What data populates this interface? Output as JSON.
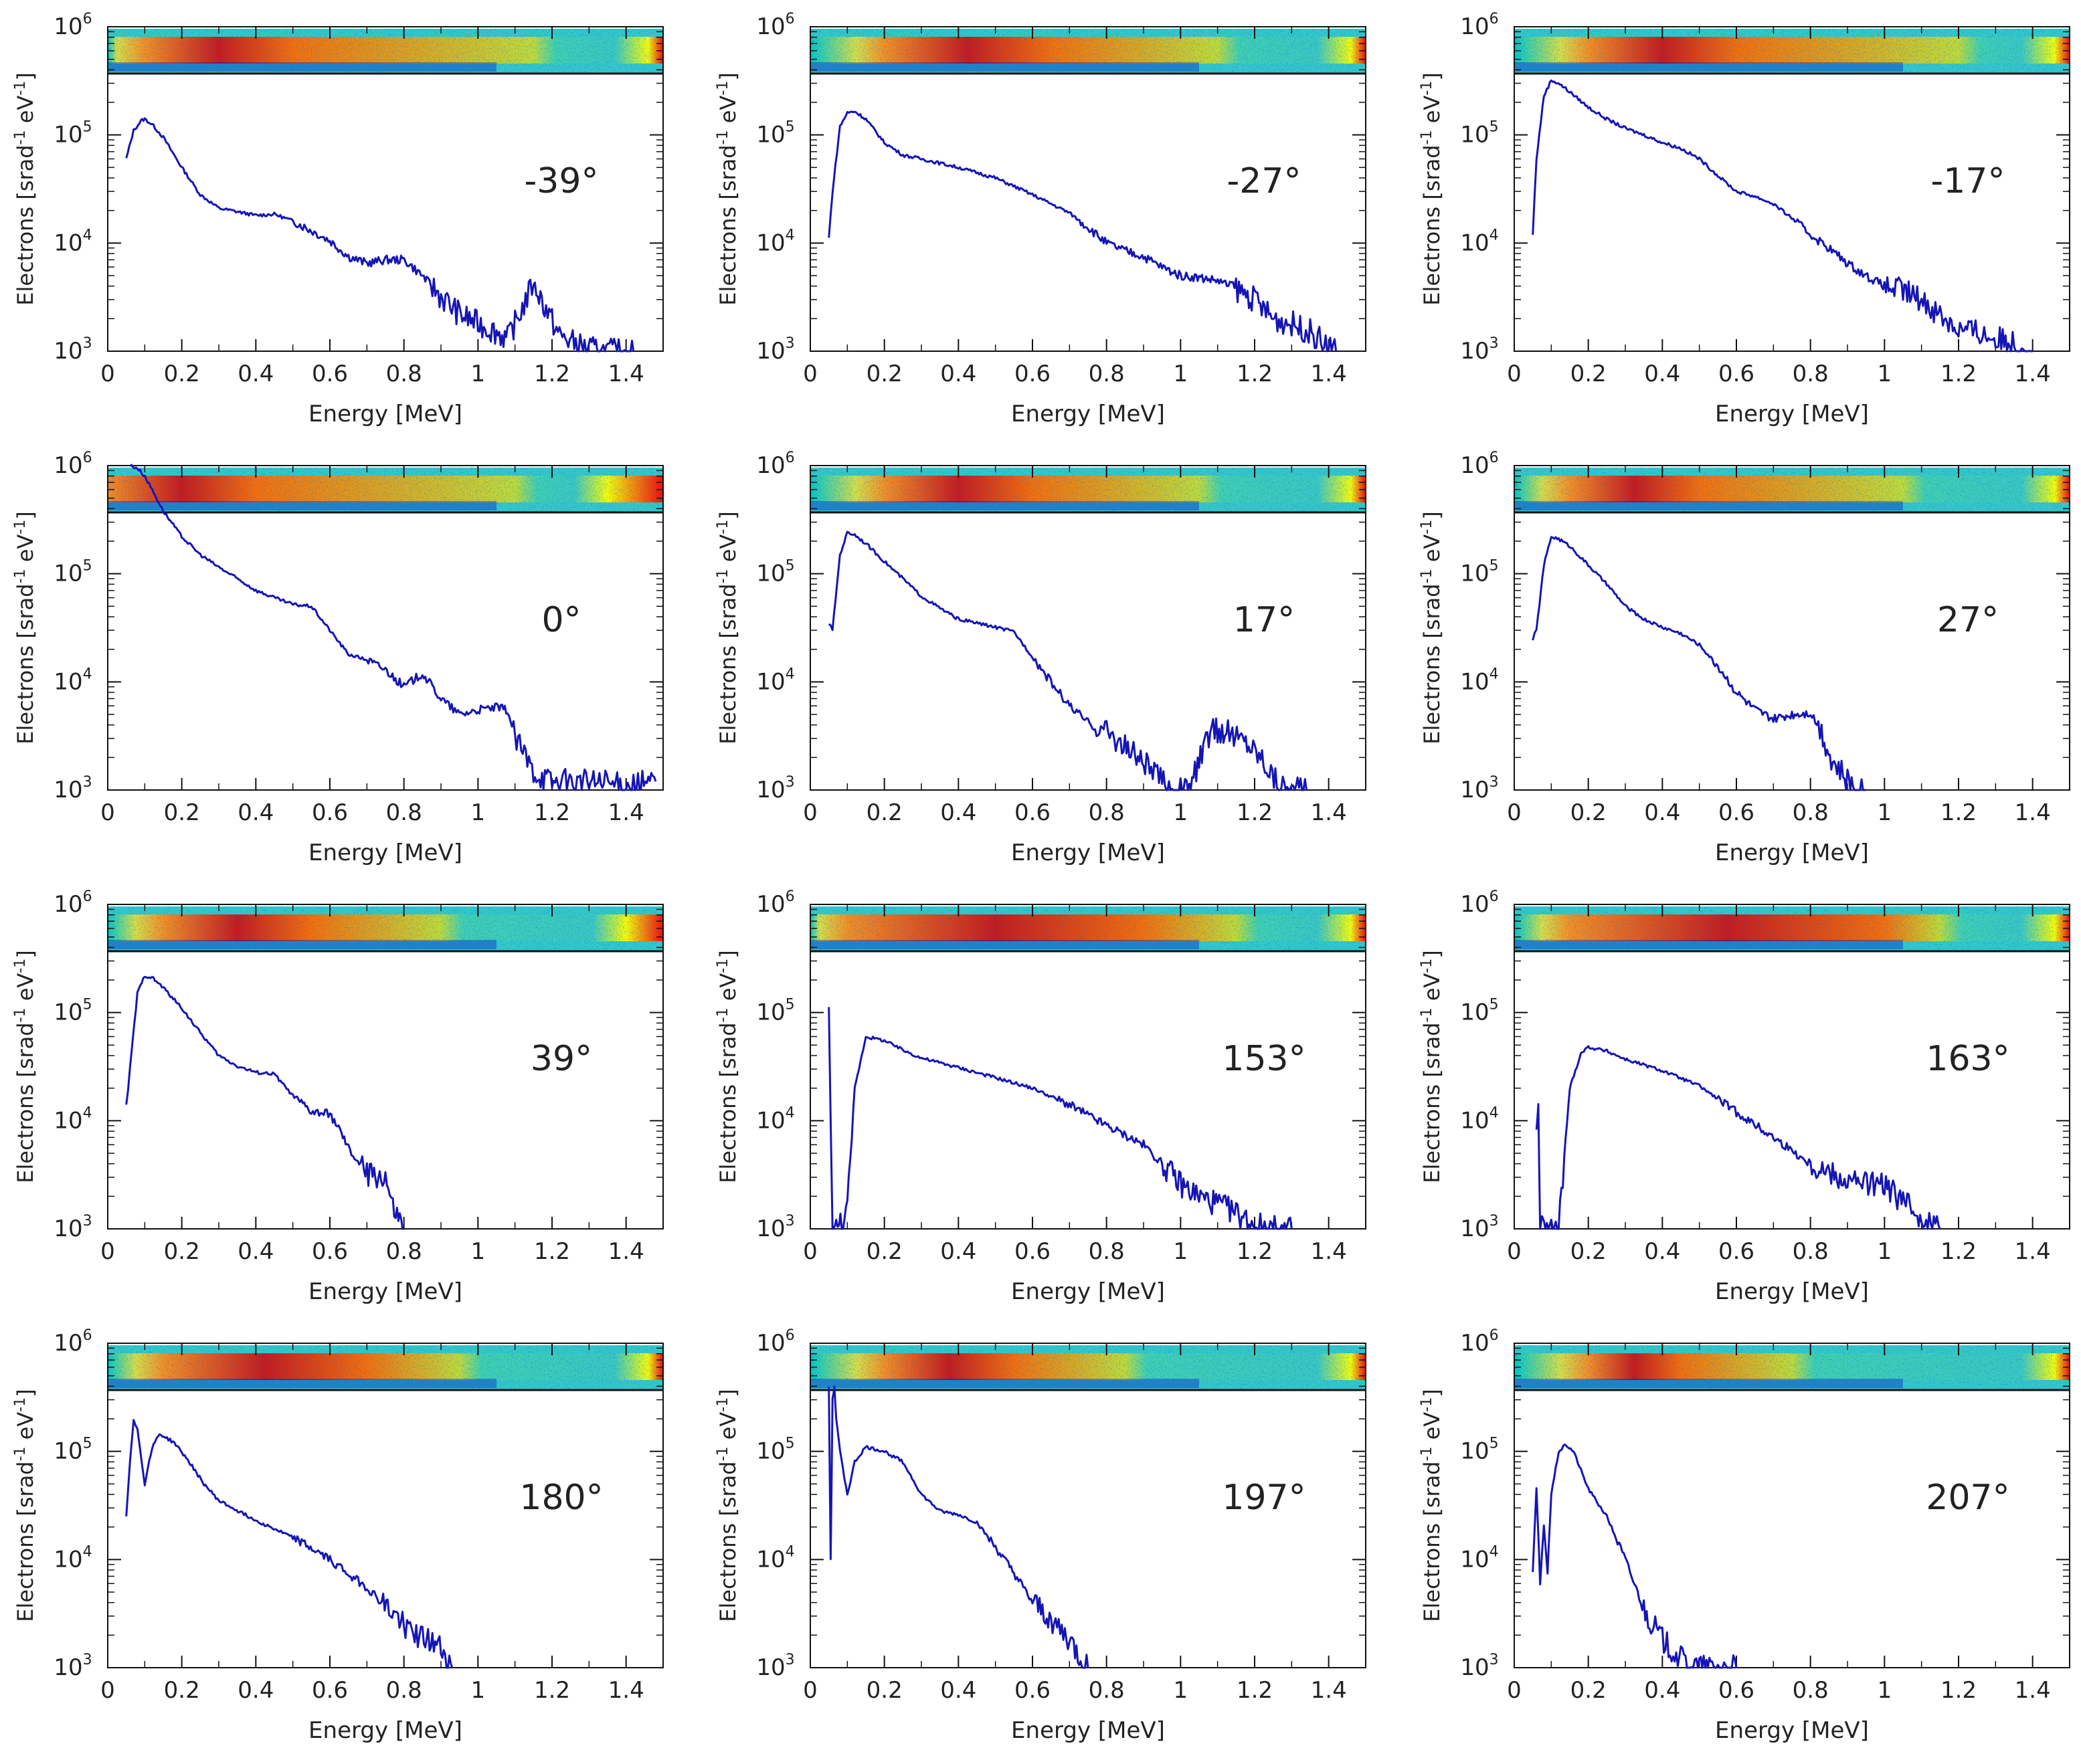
{
  "figure": {
    "xlabel": "Energy [MeV]",
    "ylabel_main": "Electrons [srad",
    "ylabel_sup1": "-1",
    "ylabel_mid": " eV",
    "ylabel_sup2": "-1",
    "ylabel_end": "]",
    "y_tick_base": "10",
    "x_ticks": [
      "0",
      "0.2",
      "0.4",
      "0.6",
      "0.8",
      "1",
      "1.2",
      "1.4"
    ],
    "y_exponents": [
      "3",
      "4",
      "5",
      "6"
    ],
    "line_color": "#1515b5",
    "image_colors": {
      "low": "#0000c8",
      "mid": "#00c8c8",
      "high": "#ffff00",
      "max": "#ff0000"
    }
  },
  "chart_data": [
    {
      "type": "line",
      "label": "-39°",
      "xlabel": "Energy [MeV]",
      "ylabel": "Electrons [srad-1 eV-1]",
      "xlim": [
        0,
        1.5
      ],
      "ylim": [
        1000,
        1000000
      ],
      "yscale": "log",
      "x": [
        0.05,
        0.07,
        0.09,
        0.1,
        0.12,
        0.15,
        0.2,
        0.25,
        0.3,
        0.35,
        0.4,
        0.45,
        0.5,
        0.55,
        0.6,
        0.65,
        0.7,
        0.75,
        0.8,
        0.85,
        0.9,
        0.95,
        1.0,
        1.05,
        1.08,
        1.12,
        1.15,
        1.18,
        1.22,
        1.28,
        1.33,
        1.38,
        1.42
      ],
      "y": [
        60000,
        110000,
        135000,
        140000,
        125000,
        95000,
        50000,
        28000,
        21000,
        19500,
        18000,
        18500,
        16000,
        13000,
        10500,
        7500,
        6500,
        7000,
        7000,
        5000,
        3200,
        2200,
        1800,
        1500,
        1300,
        2500,
        4300,
        2600,
        1400,
        1100,
        1000,
        1000,
        1000
      ],
      "spectrum_image": {
        "hot_start": 0.1,
        "hot_end": 0.5,
        "warm_end": 1.15,
        "bright_edge": 1.46
      }
    },
    {
      "type": "line",
      "label": "-27°",
      "xlabel": "Energy [MeV]",
      "ylabel": "Electrons [srad-1 eV-1]",
      "xlim": [
        0,
        1.5
      ],
      "ylim": [
        1000,
        1000000
      ],
      "yscale": "log",
      "x": [
        0.05,
        0.06,
        0.08,
        0.1,
        0.12,
        0.15,
        0.2,
        0.25,
        0.3,
        0.4,
        0.5,
        0.6,
        0.7,
        0.75,
        0.8,
        0.85,
        0.9,
        0.95,
        1.0,
        1.05,
        1.1,
        1.15,
        1.2,
        1.25,
        1.3,
        1.35,
        1.4,
        1.42
      ],
      "y": [
        11000,
        30000,
        120000,
        160000,
        165000,
        140000,
        85000,
        65000,
        60000,
        50000,
        40000,
        28000,
        19000,
        14000,
        10000,
        8500,
        7500,
        6000,
        5000,
        4800,
        4500,
        3800,
        3000,
        2000,
        1800,
        1500,
        1100,
        1000
      ],
      "spectrum_image": {
        "hot_start": 0.2,
        "hot_end": 0.65,
        "warm_end": 1.1,
        "bright_edge": 1.46
      }
    },
    {
      "type": "line",
      "label": "-17°",
      "xlabel": "Energy [MeV]",
      "ylabel": "Electrons [srad-1 eV-1]",
      "xlim": [
        0,
        1.5
      ],
      "ylim": [
        1000,
        1000000
      ],
      "yscale": "log",
      "x": [
        0.05,
        0.06,
        0.08,
        0.1,
        0.12,
        0.15,
        0.2,
        0.25,
        0.3,
        0.35,
        0.4,
        0.45,
        0.5,
        0.55,
        0.6,
        0.65,
        0.7,
        0.75,
        0.8,
        0.85,
        0.9,
        0.95,
        1.0,
        1.05,
        1.1,
        1.15,
        1.2,
        1.25,
        1.3,
        1.35,
        1.4
      ],
      "y": [
        12000,
        60000,
        230000,
        320000,
        300000,
        250000,
        180000,
        140000,
        115000,
        100000,
        85000,
        75000,
        60000,
        42000,
        30000,
        27000,
        23000,
        17000,
        12000,
        9000,
        6500,
        5000,
        4000,
        3600,
        3000,
        2200,
        1600,
        1500,
        1300,
        1200,
        1000
      ],
      "spectrum_image": {
        "hot_start": 0.2,
        "hot_end": 0.6,
        "warm_end": 1.2,
        "bright_edge": 1.46
      }
    },
    {
      "type": "line",
      "label": "0°",
      "xlabel": "Energy [MeV]",
      "ylabel": "Electrons [srad-1 eV-1]",
      "xlim": [
        0,
        1.5
      ],
      "ylim": [
        1000,
        1000000
      ],
      "yscale": "log",
      "x": [
        0.06,
        0.08,
        0.1,
        0.12,
        0.15,
        0.2,
        0.25,
        0.3,
        0.35,
        0.4,
        0.45,
        0.5,
        0.55,
        0.6,
        0.65,
        0.7,
        0.75,
        0.8,
        0.85,
        0.9,
        0.95,
        1.0,
        1.05,
        1.08,
        1.1,
        1.15,
        1.2,
        1.3,
        1.4,
        1.48
      ],
      "y": [
        1000000,
        950000,
        800000,
        600000,
        380000,
        220000,
        150000,
        115000,
        90000,
        70000,
        60000,
        52000,
        50000,
        30000,
        18000,
        16000,
        13000,
        9000,
        12000,
        7000,
        5000,
        5500,
        5800,
        5500,
        3000,
        1500,
        1200,
        1200,
        1100,
        1200
      ],
      "spectrum_image": {
        "hot_start": 0.0,
        "hot_end": 0.4,
        "warm_end": 1.1,
        "bright_edge": 1.35
      }
    },
    {
      "type": "line",
      "label": "17°",
      "xlabel": "Energy [MeV]",
      "ylabel": "Electrons [srad-1 eV-1]",
      "xlim": [
        0,
        1.5
      ],
      "ylim": [
        1000,
        1000000
      ],
      "yscale": "log",
      "x": [
        0.05,
        0.06,
        0.08,
        0.1,
        0.12,
        0.15,
        0.2,
        0.25,
        0.3,
        0.35,
        0.4,
        0.45,
        0.5,
        0.55,
        0.6,
        0.65,
        0.7,
        0.75,
        0.8,
        0.85,
        0.9,
        0.95,
        0.98,
        1.02,
        1.05,
        1.08,
        1.12,
        1.18,
        1.22,
        1.26,
        1.3,
        1.34
      ],
      "y": [
        35000,
        30000,
        150000,
        240000,
        230000,
        190000,
        130000,
        90000,
        62000,
        48000,
        38000,
        35000,
        32000,
        29000,
        17000,
        10000,
        6000,
        4200,
        3500,
        2500,
        1800,
        1200,
        1000,
        1000,
        1800,
        3500,
        3500,
        2800,
        2000,
        1200,
        1000,
        1000
      ],
      "spectrum_image": {
        "hot_start": 0.2,
        "hot_end": 0.6,
        "warm_end": 1.05,
        "bright_edge": 1.46
      }
    },
    {
      "type": "line",
      "label": "27°",
      "xlabel": "Energy [MeV]",
      "ylabel": "Electrons [srad-1 eV-1]",
      "xlim": [
        0,
        1.5
      ],
      "ylim": [
        1000,
        1000000
      ],
      "yscale": "log",
      "x": [
        0.05,
        0.06,
        0.08,
        0.1,
        0.12,
        0.15,
        0.2,
        0.25,
        0.3,
        0.35,
        0.4,
        0.45,
        0.5,
        0.55,
        0.6,
        0.65,
        0.7,
        0.75,
        0.8,
        0.83,
        0.86,
        0.88,
        0.9,
        0.93,
        0.95
      ],
      "y": [
        25000,
        30000,
        120000,
        220000,
        210000,
        180000,
        120000,
        80000,
        50000,
        38000,
        32000,
        28000,
        22000,
        14000,
        8000,
        5500,
        4500,
        5000,
        5200,
        3500,
        1800,
        1500,
        1200,
        1000,
        1000
      ],
      "spectrum_image": {
        "hot_start": 0.15,
        "hot_end": 0.5,
        "warm_end": 1.05,
        "bright_edge": 1.46
      }
    },
    {
      "type": "line",
      "label": "39°",
      "xlabel": "Energy [MeV]",
      "ylabel": "Electrons [srad-1 eV-1]",
      "xlim": [
        0,
        1.5
      ],
      "ylim": [
        1000,
        1000000
      ],
      "yscale": "log",
      "x": [
        0.05,
        0.06,
        0.08,
        0.1,
        0.12,
        0.15,
        0.2,
        0.25,
        0.3,
        0.35,
        0.4,
        0.45,
        0.5,
        0.55,
        0.6,
        0.62,
        0.65,
        0.7,
        0.75,
        0.77,
        0.8
      ],
      "y": [
        13000,
        30000,
        150000,
        220000,
        210000,
        170000,
        110000,
        65000,
        40000,
        32000,
        28000,
        27000,
        17000,
        12000,
        11500,
        9000,
        5500,
        3200,
        3000,
        1500,
        1000
      ],
      "spectrum_image": {
        "hot_start": 0.15,
        "hot_end": 0.55,
        "warm_end": 0.9,
        "bright_edge": 1.4
      }
    },
    {
      "type": "line",
      "label": "153°",
      "xlabel": "Energy [MeV]",
      "ylabel": "Electrons [srad-1 eV-1]",
      "xlim": [
        0,
        1.5
      ],
      "ylim": [
        1000,
        1000000
      ],
      "yscale": "log",
      "x": [
        0.05,
        0.06,
        0.07,
        0.1,
        0.12,
        0.15,
        0.2,
        0.25,
        0.3,
        0.4,
        0.5,
        0.6,
        0.7,
        0.8,
        0.9,
        0.95,
        1.0,
        1.05,
        1.1,
        1.15,
        1.2,
        1.25,
        1.3
      ],
      "y": [
        110000,
        1000,
        1000,
        1500,
        20000,
        60000,
        55000,
        45000,
        38000,
        31000,
        25000,
        20000,
        14000,
        9000,
        6000,
        4000,
        2600,
        2000,
        1700,
        1400,
        1100,
        1000,
        1000
      ],
      "spectrum_image": {
        "hot_start": 0.1,
        "hot_end": 0.9,
        "warm_end": 1.15,
        "bright_edge": 1.46
      }
    },
    {
      "type": "line",
      "label": "163°",
      "xlabel": "Energy [MeV]",
      "ylabel": "Electrons [srad-1 eV-1]",
      "xlim": [
        0,
        1.5
      ],
      "ylim": [
        1000,
        1000000
      ],
      "yscale": "log",
      "x": [
        0.06,
        0.065,
        0.07,
        0.08,
        0.12,
        0.15,
        0.18,
        0.2,
        0.25,
        0.3,
        0.4,
        0.5,
        0.6,
        0.7,
        0.8,
        0.9,
        1.0,
        1.05,
        1.1,
        1.15
      ],
      "y": [
        8000,
        15000,
        1000,
        1000,
        1000,
        20000,
        42000,
        48000,
        44000,
        37000,
        29000,
        21000,
        12000,
        7000,
        4000,
        2800,
        2500,
        1800,
        1300,
        1000
      ],
      "spectrum_image": {
        "hot_start": 0.15,
        "hot_end": 1.0,
        "warm_end": 1.15,
        "bright_edge": 1.46
      }
    },
    {
      "type": "line",
      "label": "180°",
      "xlabel": "Energy [MeV]",
      "ylabel": "Electrons [srad-1 eV-1]",
      "xlim": [
        0,
        1.5
      ],
      "ylim": [
        1000,
        1000000
      ],
      "yscale": "log",
      "x": [
        0.05,
        0.06,
        0.07,
        0.08,
        0.1,
        0.12,
        0.14,
        0.18,
        0.22,
        0.26,
        0.3,
        0.4,
        0.5,
        0.6,
        0.7,
        0.8,
        0.85,
        0.9,
        0.93
      ],
      "y": [
        25000,
        80000,
        200000,
        160000,
        50000,
        110000,
        145000,
        120000,
        80000,
        50000,
        35000,
        23000,
        16000,
        10000,
        5500,
        2500,
        1900,
        1500,
        1000
      ],
      "spectrum_image": {
        "hot_start": 0.15,
        "hot_end": 0.7,
        "warm_end": 0.95,
        "bright_edge": 1.46
      }
    },
    {
      "type": "line",
      "label": "197°",
      "xlabel": "Energy [MeV]",
      "ylabel": "Electrons [srad-1 eV-1]",
      "xlim": [
        0,
        1.5
      ],
      "ylim": [
        1000,
        1000000
      ],
      "yscale": "log",
      "x": [
        0.05,
        0.055,
        0.06,
        0.065,
        0.07,
        0.08,
        0.1,
        0.12,
        0.15,
        0.2,
        0.25,
        0.3,
        0.35,
        0.4,
        0.45,
        0.5,
        0.55,
        0.6,
        0.65,
        0.7,
        0.73,
        0.75
      ],
      "y": [
        400000,
        10000,
        300000,
        400000,
        200000,
        100000,
        40000,
        80000,
        110000,
        100000,
        80000,
        40000,
        28000,
        26000,
        22000,
        13000,
        7500,
        4000,
        2800,
        1800,
        1200,
        1000
      ],
      "spectrum_image": {
        "hot_start": 0.2,
        "hot_end": 0.55,
        "warm_end": 0.85,
        "bright_edge": 1.46
      }
    },
    {
      "type": "line",
      "label": "207°",
      "xlabel": "Energy [MeV]",
      "ylabel": "Electrons [srad-1 eV-1]",
      "xlim": [
        0,
        1.5
      ],
      "ylim": [
        1000,
        1000000
      ],
      "yscale": "log",
      "x": [
        0.05,
        0.06,
        0.07,
        0.08,
        0.09,
        0.1,
        0.12,
        0.14,
        0.16,
        0.2,
        0.25,
        0.3,
        0.35,
        0.4,
        0.45,
        0.5,
        0.55,
        0.6
      ],
      "y": [
        8000,
        45000,
        6000,
        20000,
        8000,
        40000,
        100000,
        115000,
        100000,
        45000,
        25000,
        10000,
        3500,
        1800,
        1200,
        1000,
        1000,
        1000
      ],
      "spectrum_image": {
        "hot_start": 0.2,
        "hot_end": 0.45,
        "warm_end": 0.75,
        "bright_edge": 1.46
      }
    }
  ]
}
